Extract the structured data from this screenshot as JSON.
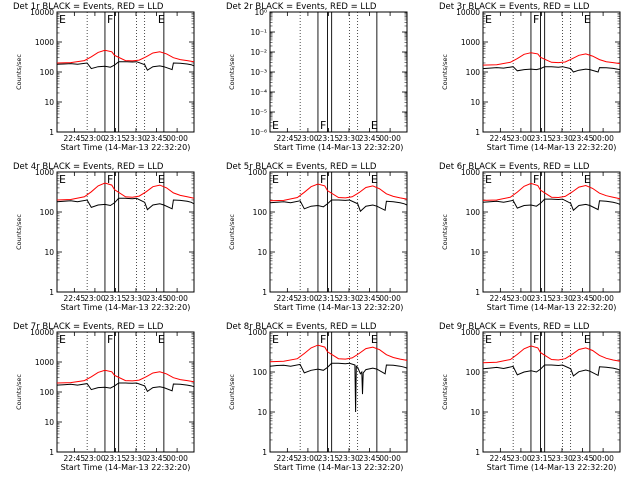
{
  "panel_defaults": {
    "xlabel": "Start Time (14-Mar-13 22:32:20)",
    "ylabel": "Counts/sec",
    "x_tick_labels": [
      "22:45",
      "23:00",
      "23:15",
      "23:30",
      "23:45",
      "00:00"
    ],
    "x_ticks": [
      12.67,
      27.67,
      42.67,
      57.67,
      72.67,
      87.67
    ],
    "xlim": [
      0,
      100
    ],
    "markers": [
      {
        "label": "F",
        "x": 35
      },
      {
        "label": "F",
        "x": 42
      },
      {
        "label": "E",
        "x": 45
      },
      {
        "label": "E",
        "x": 78
      }
    ],
    "dotted_lines": [
      22,
      58,
      64,
      100
    ],
    "colors": {
      "events": "#000000",
      "lld": "#ff0000"
    }
  },
  "chart_data": [
    {
      "type": "line",
      "title": "Det 1r  BLACK = Events,  RED = LLD",
      "ylim": [
        1,
        10000
      ],
      "yscale": "log",
      "y_tick_labels": [
        "1",
        "10",
        "100",
        "1000",
        "10000"
      ],
      "series": [
        {
          "name": "Events",
          "x": [
            0,
            5,
            10,
            15,
            22,
            25,
            30,
            35,
            39,
            42,
            45,
            50,
            55,
            58,
            64,
            66,
            70,
            75,
            78,
            84,
            85,
            90,
            95,
            98,
            100
          ],
          "y": [
            180,
            185,
            190,
            180,
            200,
            130,
            150,
            155,
            145,
            170,
            220,
            220,
            215,
            220,
            175,
            115,
            150,
            160,
            150,
            120,
            200,
            195,
            185,
            175,
            160
          ]
        },
        {
          "name": "LLD",
          "x": [
            0,
            10,
            20,
            25,
            30,
            35,
            40,
            42,
            50,
            55,
            60,
            65,
            70,
            75,
            80,
            85,
            90,
            95,
            100
          ],
          "y": [
            200,
            205,
            240,
            320,
            450,
            530,
            470,
            360,
            240,
            235,
            250,
            320,
            430,
            470,
            400,
            300,
            260,
            240,
            220
          ]
        }
      ]
    },
    {
      "type": "line",
      "title": "Det 2r  BLACK = Events,  RED = LLD",
      "ylim": [
        1e-06,
        1
      ],
      "yscale": "log",
      "y_tick_labels": [
        "10⁻⁶",
        "10⁻⁵",
        "10⁻⁴",
        "10⁻³",
        "10⁻²",
        "10⁻¹",
        "10⁰"
      ],
      "series": []
    },
    {
      "type": "line",
      "title": "Det 3r  BLACK = Events,  RED = LLD",
      "ylim": [
        1,
        10000
      ],
      "yscale": "log",
      "y_tick_labels": [
        "1",
        "10",
        "100",
        "1000",
        "10000"
      ],
      "series": [
        {
          "name": "Events",
          "x": [
            0,
            5,
            10,
            15,
            22,
            25,
            30,
            35,
            39,
            42,
            45,
            50,
            55,
            58,
            64,
            66,
            70,
            75,
            78,
            84,
            85,
            90,
            95,
            98,
            100
          ],
          "y": [
            130,
            135,
            140,
            135,
            150,
            110,
            120,
            125,
            120,
            130,
            150,
            150,
            145,
            150,
            130,
            100,
            115,
            125,
            120,
            100,
            140,
            138,
            132,
            125,
            120
          ]
        },
        {
          "name": "LLD",
          "x": [
            0,
            10,
            20,
            25,
            30,
            35,
            40,
            42,
            50,
            55,
            60,
            65,
            70,
            75,
            80,
            85,
            90,
            95,
            100
          ],
          "y": [
            170,
            175,
            210,
            280,
            390,
            440,
            400,
            310,
            210,
            205,
            215,
            275,
            360,
            400,
            340,
            260,
            220,
            205,
            190
          ]
        }
      ]
    },
    {
      "type": "line",
      "title": "Det 4r  BLACK = Events,  RED = LLD",
      "ylim": [
        1,
        1000
      ],
      "yscale": "log",
      "y_tick_labels": [
        "1",
        "10",
        "100",
        "1000"
      ],
      "series": [
        {
          "name": "Events",
          "x": [
            0,
            5,
            10,
            15,
            22,
            25,
            30,
            35,
            39,
            42,
            45,
            50,
            55,
            58,
            64,
            66,
            70,
            75,
            78,
            84,
            85,
            90,
            95,
            98,
            100
          ],
          "y": [
            180,
            185,
            190,
            180,
            200,
            130,
            150,
            155,
            145,
            170,
            220,
            220,
            215,
            220,
            175,
            115,
            150,
            160,
            150,
            120,
            200,
            195,
            185,
            175,
            160
          ]
        },
        {
          "name": "LLD",
          "x": [
            0,
            10,
            20,
            25,
            30,
            35,
            40,
            42,
            50,
            55,
            60,
            65,
            70,
            75,
            80,
            85,
            90,
            95,
            100
          ],
          "y": [
            200,
            205,
            240,
            320,
            450,
            530,
            470,
            360,
            240,
            235,
            250,
            320,
            430,
            470,
            400,
            300,
            260,
            240,
            220
          ]
        }
      ]
    },
    {
      "type": "line",
      "title": "Det 5r  BLACK = Events,  RED = LLD",
      "ylim": [
        1,
        1000
      ],
      "yscale": "log",
      "y_tick_labels": [
        "1",
        "10",
        "100",
        "1000"
      ],
      "series": [
        {
          "name": "Events",
          "x": [
            0,
            5,
            10,
            15,
            22,
            25,
            30,
            35,
            39,
            42,
            45,
            50,
            55,
            58,
            64,
            66,
            70,
            75,
            78,
            84,
            85,
            90,
            95,
            98,
            100
          ],
          "y": [
            170,
            175,
            180,
            170,
            190,
            120,
            140,
            145,
            135,
            160,
            200,
            200,
            195,
            200,
            160,
            105,
            140,
            150,
            140,
            110,
            185,
            180,
            170,
            160,
            150
          ]
        },
        {
          "name": "LLD",
          "x": [
            0,
            10,
            20,
            25,
            30,
            35,
            40,
            42,
            50,
            55,
            60,
            65,
            70,
            75,
            80,
            85,
            90,
            95,
            100
          ],
          "y": [
            190,
            195,
            230,
            310,
            430,
            500,
            450,
            340,
            230,
            225,
            240,
            305,
            410,
            450,
            380,
            285,
            245,
            225,
            210
          ]
        }
      ]
    },
    {
      "type": "line",
      "title": "Det 6r  BLACK = Events,  RED = LLD",
      "ylim": [
        1,
        1000
      ],
      "yscale": "log",
      "y_tick_labels": [
        "1",
        "10",
        "100",
        "1000"
      ],
      "series": [
        {
          "name": "Events",
          "x": [
            0,
            5,
            10,
            15,
            22,
            25,
            30,
            35,
            39,
            42,
            45,
            50,
            55,
            58,
            64,
            66,
            70,
            75,
            78,
            84,
            85,
            90,
            95,
            98,
            100
          ],
          "y": [
            175,
            180,
            185,
            175,
            195,
            125,
            145,
            150,
            140,
            165,
            210,
            210,
            205,
            210,
            165,
            110,
            145,
            155,
            145,
            115,
            190,
            185,
            175,
            165,
            155
          ]
        },
        {
          "name": "LLD",
          "x": [
            0,
            10,
            20,
            25,
            30,
            35,
            40,
            42,
            50,
            55,
            60,
            65,
            70,
            75,
            80,
            85,
            90,
            95,
            100
          ],
          "y": [
            195,
            200,
            235,
            315,
            440,
            520,
            460,
            350,
            235,
            230,
            245,
            315,
            420,
            460,
            390,
            295,
            255,
            235,
            215
          ]
        }
      ]
    },
    {
      "type": "line",
      "title": "Det 7r  BLACK = Events,  RED = LLD",
      "ylim": [
        1,
        10000
      ],
      "yscale": "log",
      "y_tick_labels": [
        "1",
        "10",
        "100",
        "1000",
        "10000"
      ],
      "series": [
        {
          "name": "Events",
          "x": [
            0,
            5,
            10,
            15,
            22,
            25,
            30,
            35,
            39,
            42,
            45,
            50,
            55,
            58,
            64,
            66,
            70,
            75,
            78,
            84,
            85,
            90,
            95,
            98,
            100
          ],
          "y": [
            170,
            175,
            180,
            170,
            190,
            120,
            140,
            145,
            135,
            160,
            200,
            200,
            195,
            200,
            160,
            105,
            140,
            150,
            140,
            110,
            185,
            180,
            170,
            160,
            150
          ]
        },
        {
          "name": "LLD",
          "x": [
            0,
            10,
            20,
            25,
            30,
            35,
            40,
            42,
            50,
            55,
            60,
            65,
            70,
            75,
            80,
            85,
            90,
            95,
            100
          ],
          "y": [
            200,
            205,
            240,
            320,
            450,
            530,
            470,
            360,
            240,
            235,
            250,
            320,
            430,
            470,
            400,
            300,
            260,
            240,
            220
          ]
        }
      ]
    },
    {
      "type": "line",
      "title": "Det 8r  BLACK = Events,  RED = LLD",
      "ylim": [
        1,
        1000
      ],
      "yscale": "log",
      "y_tick_labels": [
        "1",
        "10",
        "100",
        "1000"
      ],
      "series": [
        {
          "name": "Events",
          "x": [
            0,
            5,
            10,
            15,
            22,
            25,
            30,
            35,
            39,
            42,
            45,
            50,
            55,
            58,
            62,
            62.5,
            63,
            64,
            66,
            67,
            67.5,
            68,
            70,
            75,
            78,
            84,
            85,
            90,
            95,
            98,
            100
          ],
          "y": [
            140,
            145,
            148,
            140,
            155,
            95,
            110,
            118,
            110,
            130,
            165,
            165,
            160,
            165,
            150,
            10,
            140,
            130,
            90,
            100,
            28,
            95,
            115,
            125,
            118,
            90,
            150,
            148,
            140,
            132,
            125
          ]
        },
        {
          "name": "LLD",
          "x": [
            0,
            10,
            20,
            25,
            30,
            35,
            40,
            42,
            50,
            55,
            60,
            65,
            70,
            75,
            80,
            85,
            90,
            95,
            100
          ],
          "y": [
            180,
            185,
            215,
            290,
            400,
            470,
            420,
            320,
            215,
            210,
            225,
            290,
            385,
            420,
            360,
            270,
            230,
            210,
            195
          ]
        }
      ]
    },
    {
      "type": "line",
      "title": "Det 9r  BLACK = Events,  RED = LLD",
      "ylim": [
        1,
        1000
      ],
      "yscale": "log",
      "y_tick_labels": [
        "1",
        "10",
        "100",
        "1000"
      ],
      "series": [
        {
          "name": "Events",
          "x": [
            0,
            5,
            10,
            15,
            22,
            25,
            30,
            35,
            39,
            42,
            45,
            50,
            55,
            58,
            64,
            66,
            70,
            75,
            78,
            84,
            85,
            90,
            95,
            98,
            100
          ],
          "y": [
            120,
            125,
            130,
            122,
            138,
            85,
            100,
            108,
            100,
            118,
            150,
            150,
            145,
            150,
            120,
            80,
            102,
            112,
            105,
            82,
            135,
            132,
            125,
            118,
            110
          ]
        },
        {
          "name": "LLD",
          "x": [
            0,
            10,
            20,
            25,
            30,
            35,
            40,
            42,
            50,
            55,
            60,
            65,
            70,
            75,
            80,
            85,
            90,
            95,
            100
          ],
          "y": [
            170,
            175,
            205,
            275,
            380,
            450,
            400,
            305,
            205,
            200,
            215,
            275,
            365,
            400,
            345,
            260,
            220,
            200,
            185
          ]
        }
      ]
    }
  ]
}
